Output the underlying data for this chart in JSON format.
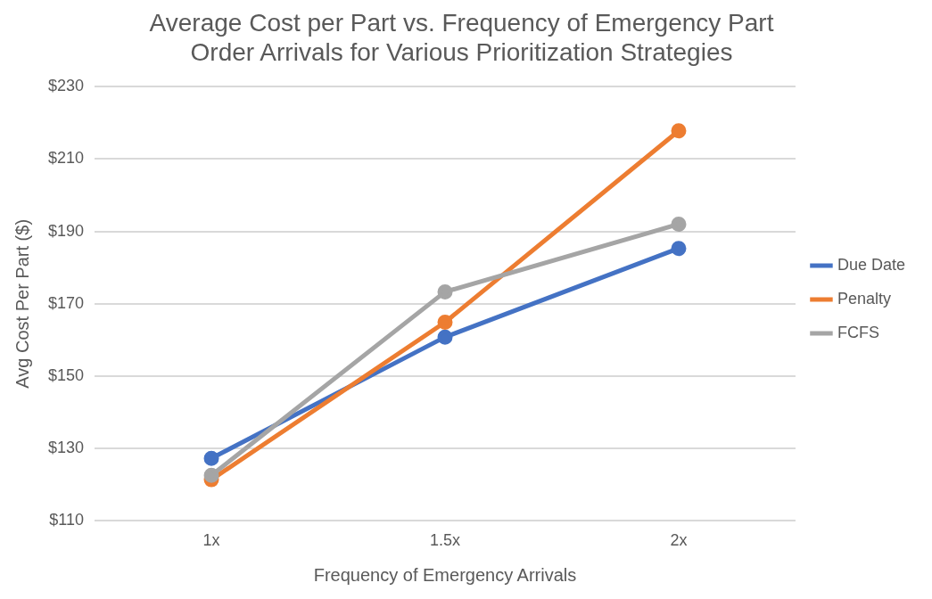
{
  "chart_data": {
    "type": "line",
    "title": "Average Cost per Part vs. Frequency of Emergency Part Order Arrivals for Various Prioritization Strategies",
    "xlabel": "Frequency of Emergency Arrivals",
    "ylabel": "Avg Cost Per Part ($)",
    "categories": [
      "1x",
      "1.5x",
      "2x"
    ],
    "series": [
      {
        "name": "Due Date",
        "color": "#4472c4",
        "values": [
          127.3,
          160.8,
          185.3
        ]
      },
      {
        "name": "Penalty",
        "color": "#ed7d31",
        "values": [
          121.4,
          164.9,
          217.8
        ]
      },
      {
        "name": "FCFS",
        "color": "#a5a5a5",
        "values": [
          122.6,
          173.3,
          192
        ]
      }
    ],
    "ylim": [
      110,
      230
    ],
    "yticks": [
      {
        "value": 110,
        "label": "$110"
      },
      {
        "value": 130,
        "label": "$130"
      },
      {
        "value": 150,
        "label": "$150"
      },
      {
        "value": 170,
        "label": "$170"
      },
      {
        "value": 190,
        "label": "$190"
      },
      {
        "value": 210,
        "label": "$210"
      },
      {
        "value": 230,
        "label": "$230"
      }
    ],
    "grid": "y",
    "legend": "right",
    "marker": "circle",
    "line_style": "solid"
  }
}
